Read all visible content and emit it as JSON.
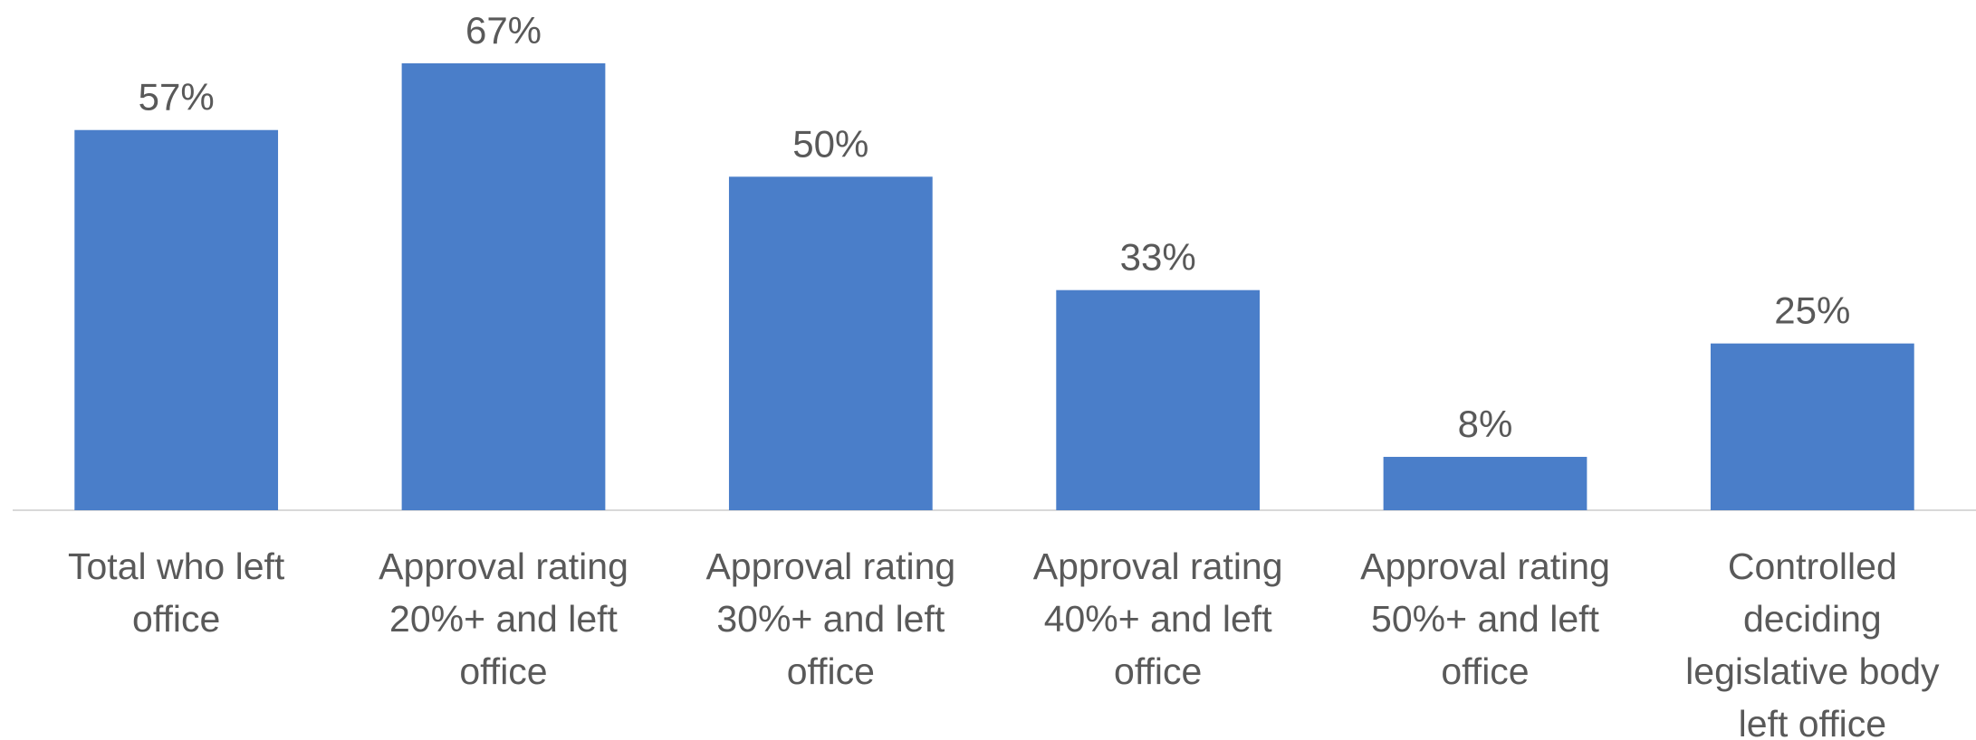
{
  "chart_data": {
    "type": "bar",
    "categories": [
      "Total who left office",
      "Approval rating 20%+ and left office",
      "Approval rating 30%+ and left office",
      "Approval rating 40%+ and left office",
      "Approval rating 50%+ and  left office",
      "Controlled deciding legislative body left office"
    ],
    "values": [
      57,
      67,
      50,
      33,
      8,
      25
    ],
    "value_labels": [
      "57%",
      "67%",
      "50%",
      "33%",
      "8%",
      "25%"
    ],
    "color": "#4a7ec9"
  }
}
